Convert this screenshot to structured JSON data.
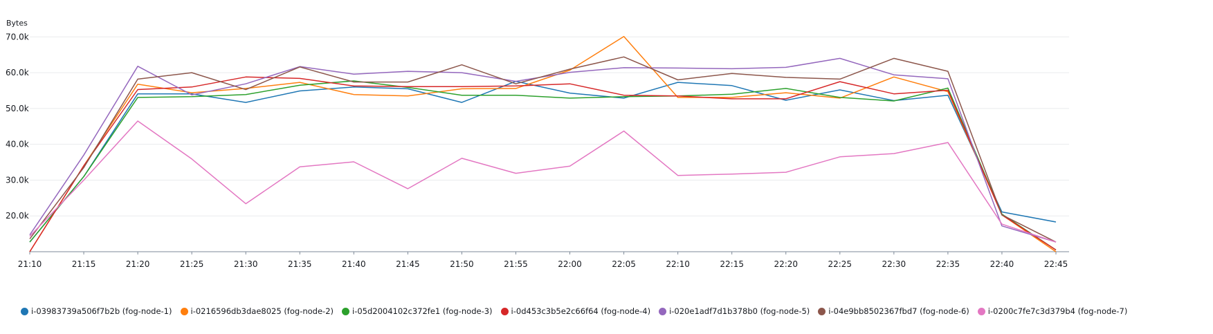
{
  "chart_data": {
    "type": "line",
    "ylabel": "Bytes",
    "ylim": [
      10000,
      72000
    ],
    "yticks": [
      "20.0k",
      "30.0k",
      "40.0k",
      "50.0k",
      "60.0k",
      "70.0k"
    ],
    "ytick_values": [
      20000,
      30000,
      40000,
      50000,
      60000,
      70000
    ],
    "categories": [
      "21:10",
      "21:15",
      "21:20",
      "21:25",
      "21:30",
      "21:35",
      "21:40",
      "21:45",
      "21:50",
      "21:55",
      "22:00",
      "22:05",
      "22:10",
      "22:15",
      "22:20",
      "22:25",
      "22:30",
      "22:35",
      "22:40",
      "22:45"
    ],
    "grid": true,
    "legend_position": "bottom",
    "series": [
      {
        "name": "i-03983739a506f7b2b (fog-node-1)",
        "color": "#1f77b4",
        "values": [
          12700,
          31000,
          54100,
          54100,
          51700,
          54900,
          56000,
          55500,
          51700,
          57600,
          54300,
          52900,
          57300,
          56400,
          52300,
          55200,
          52200,
          53700,
          21100,
          18300
        ]
      },
      {
        "name": "i-0216596db3dae8025 (fog-node-2)",
        "color": "#ff7f0e",
        "values": [
          10000,
          34000,
          56800,
          54400,
          55600,
          57300,
          53900,
          53500,
          55500,
          55600,
          60700,
          70100,
          53100,
          53100,
          54400,
          52900,
          58800,
          54700,
          20300,
          10000
        ]
      },
      {
        "name": "i-05d2004102c372fe1 (fog-node-3)",
        "color": "#2ca02c",
        "values": [
          12700,
          31000,
          53100,
          53300,
          53900,
          56500,
          57700,
          55900,
          53700,
          53700,
          52900,
          53300,
          53500,
          54000,
          55600,
          53100,
          52100,
          55700,
          20500,
          10500
        ]
      },
      {
        "name": "i-0d453c3b5e2c66f64 (fog-node-4)",
        "color": "#d62728",
        "values": [
          10000,
          34000,
          55300,
          56000,
          58800,
          58400,
          56300,
          56100,
          56100,
          56300,
          56900,
          53700,
          53500,
          52700,
          52700,
          57500,
          54100,
          55100,
          20300,
          10500
        ]
      },
      {
        "name": "i-020e1adf7d1b378b0 (fog-node-5)",
        "color": "#9467bd",
        "values": [
          14700,
          37000,
          61800,
          53800,
          56900,
          61700,
          59600,
          60400,
          60000,
          57600,
          60100,
          61400,
          61300,
          61100,
          61500,
          64000,
          59400,
          58300,
          17200,
          12700
        ]
      },
      {
        "name": "i-04e9bb8502367fbd7 (fog-node-6)",
        "color": "#8c564b",
        "values": [
          13600,
          33500,
          58200,
          60000,
          55300,
          61600,
          57400,
          57400,
          62200,
          56900,
          61000,
          64400,
          58000,
          59800,
          58700,
          58200,
          64000,
          60400,
          20300,
          12700
        ]
      },
      {
        "name": "i-0200c7fe7c3d379b4 (fog-node-7)",
        "color": "#e377c2",
        "values": [
          14300,
          30000,
          46500,
          35900,
          23400,
          33700,
          35100,
          27600,
          36100,
          31900,
          33900,
          43700,
          31300,
          31700,
          32200,
          36500,
          37400,
          40500,
          17700,
          12700
        ]
      }
    ]
  }
}
